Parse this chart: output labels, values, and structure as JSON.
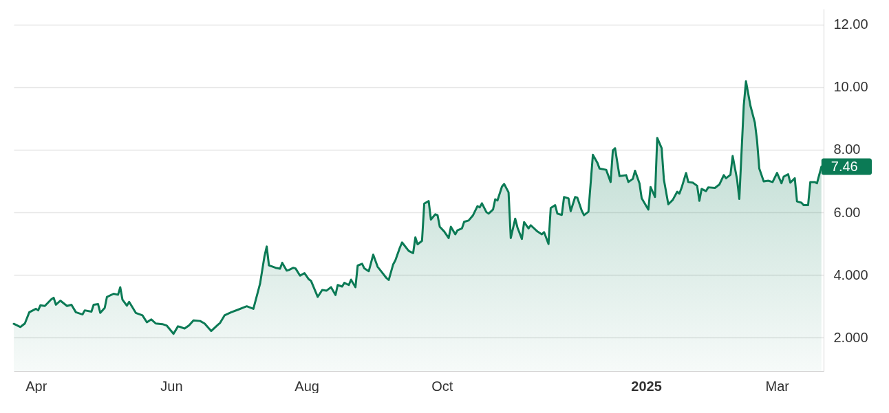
{
  "chart_data": {
    "type": "area",
    "x": [
      "2024-03-22",
      "2024-03-25",
      "2024-03-27",
      "2024-03-29",
      "2024-04-01",
      "2024-04-02",
      "2024-04-03",
      "2024-04-05",
      "2024-04-08",
      "2024-04-09",
      "2024-04-10",
      "2024-04-12",
      "2024-04-15",
      "2024-04-17",
      "2024-04-19",
      "2024-04-22",
      "2024-04-23",
      "2024-04-26",
      "2024-04-27",
      "2024-04-29",
      "2024-04-30",
      "2024-05-02",
      "2024-05-03",
      "2024-05-06",
      "2024-05-08",
      "2024-05-09",
      "2024-05-10",
      "2024-05-12",
      "2024-05-13",
      "2024-05-16",
      "2024-05-19",
      "2024-05-21",
      "2024-05-23",
      "2024-05-25",
      "2024-05-28",
      "2024-05-30",
      "2024-06-02",
      "2024-06-04",
      "2024-06-05",
      "2024-06-07",
      "2024-06-09",
      "2024-06-11",
      "2024-06-14",
      "2024-06-16",
      "2024-06-19",
      "2024-06-22",
      "2024-06-23",
      "2024-06-25",
      "2024-06-28",
      "2024-07-01",
      "2024-07-05",
      "2024-07-08",
      "2024-07-11",
      "2024-07-13",
      "2024-07-14",
      "2024-07-15",
      "2024-07-18",
      "2024-07-20",
      "2024-07-21",
      "2024-07-23",
      "2024-07-24",
      "2024-07-26",
      "2024-07-27",
      "2024-07-29",
      "2024-07-31",
      "2024-08-02",
      "2024-08-03",
      "2024-08-06",
      "2024-08-08",
      "2024-08-10",
      "2024-08-12",
      "2024-08-14",
      "2024-08-15",
      "2024-08-17",
      "2024-08-18",
      "2024-08-20",
      "2024-08-21",
      "2024-08-23",
      "2024-08-24",
      "2024-08-26",
      "2024-08-27",
      "2024-08-29",
      "2024-08-31",
      "2024-09-02",
      "2024-09-03",
      "2024-09-06",
      "2024-09-07",
      "2024-09-09",
      "2024-09-10",
      "2024-09-12",
      "2024-09-13",
      "2024-09-16",
      "2024-09-18",
      "2024-09-19",
      "2024-09-20",
      "2024-09-22",
      "2024-09-23",
      "2024-09-25",
      "2024-09-26",
      "2024-09-28",
      "2024-09-29",
      "2024-09-30",
      "2024-10-02",
      "2024-10-04",
      "2024-10-05",
      "2024-10-07",
      "2024-10-08",
      "2024-10-10",
      "2024-10-11",
      "2024-10-13",
      "2024-10-15",
      "2024-10-17",
      "2024-10-18",
      "2024-10-19",
      "2024-10-21",
      "2024-10-22",
      "2024-10-24",
      "2024-10-25",
      "2024-10-26",
      "2024-10-28",
      "2024-10-29",
      "2024-10-31",
      "2024-11-01",
      "2024-11-03",
      "2024-11-04",
      "2024-11-06",
      "2024-11-07",
      "2024-11-09",
      "2024-11-10",
      "2024-11-13",
      "2024-11-15",
      "2024-11-16",
      "2024-11-18",
      "2024-11-19",
      "2024-11-21",
      "2024-11-22",
      "2024-11-24",
      "2024-11-25",
      "2024-11-27",
      "2024-11-28",
      "2024-11-30",
      "2024-12-01",
      "2024-12-03",
      "2024-12-04",
      "2024-12-06",
      "2024-12-08",
      "2024-12-10",
      "2024-12-11",
      "2024-12-14",
      "2024-12-16",
      "2024-12-17",
      "2024-12-18",
      "2024-12-20",
      "2024-12-23",
      "2024-12-24",
      "2024-12-26",
      "2024-12-27",
      "2024-12-29",
      "2024-12-30",
      "2025-01-02",
      "2025-01-03",
      "2025-01-05",
      "2025-01-06",
      "2025-01-08",
      "2025-01-09",
      "2025-01-11",
      "2025-01-13",
      "2025-01-15",
      "2025-01-16",
      "2025-01-17",
      "2025-01-19",
      "2025-01-20",
      "2025-01-22",
      "2025-01-24",
      "2025-01-25",
      "2025-01-26",
      "2025-01-28",
      "2025-01-29",
      "2025-02-01",
      "2025-02-03",
      "2025-02-05",
      "2025-02-06",
      "2025-02-08",
      "2025-02-09",
      "2025-02-11",
      "2025-02-12",
      "2025-02-14",
      "2025-02-15",
      "2025-02-17",
      "2025-02-19",
      "2025-02-20",
      "2025-02-21",
      "2025-02-23",
      "2025-02-25",
      "2025-02-27",
      "2025-03-01",
      "2025-03-03",
      "2025-03-04",
      "2025-03-06",
      "2025-03-07",
      "2025-03-09",
      "2025-03-10",
      "2025-03-12",
      "2025-03-13",
      "2025-03-15",
      "2025-03-16",
      "2025-03-18",
      "2025-03-19",
      "2025-03-21"
    ],
    "series": [
      {
        "color": "#0b7a55",
        "values": [
          2.44,
          2.34,
          2.45,
          2.81,
          2.92,
          2.87,
          3.03,
          3.01,
          3.23,
          3.27,
          3.05,
          3.18,
          3.01,
          3.05,
          2.81,
          2.74,
          2.87,
          2.83,
          3.05,
          3.07,
          2.79,
          2.95,
          3.3,
          3.4,
          3.37,
          3.61,
          3.21,
          3.02,
          3.14,
          2.79,
          2.71,
          2.49,
          2.58,
          2.45,
          2.43,
          2.38,
          2.12,
          2.36,
          2.34,
          2.29,
          2.39,
          2.55,
          2.53,
          2.45,
          2.21,
          2.41,
          2.47,
          2.71,
          2.81,
          2.89,
          3.0,
          2.92,
          3.72,
          4.6,
          4.91,
          4.31,
          4.23,
          4.2,
          4.39,
          4.14,
          4.16,
          4.23,
          4.21,
          3.98,
          4.06,
          3.86,
          3.81,
          3.3,
          3.52,
          3.5,
          3.61,
          3.36,
          3.68,
          3.63,
          3.75,
          3.68,
          3.85,
          3.61,
          4.3,
          4.36,
          4.21,
          4.12,
          4.65,
          4.26,
          4.17,
          3.9,
          3.84,
          4.34,
          4.47,
          4.87,
          5.04,
          4.77,
          4.7,
          5.2,
          4.98,
          5.09,
          6.28,
          6.36,
          5.77,
          5.94,
          5.91,
          5.54,
          5.39,
          5.18,
          5.54,
          5.3,
          5.43,
          5.49,
          5.7,
          5.74,
          5.91,
          6.2,
          6.16,
          6.29,
          6.01,
          5.96,
          6.09,
          6.42,
          6.38,
          6.82,
          6.91,
          6.64,
          5.18,
          5.8,
          5.52,
          5.15,
          5.69,
          5.49,
          5.59,
          5.39,
          5.3,
          5.37,
          4.99,
          6.14,
          6.23,
          5.96,
          5.92,
          6.49,
          6.45,
          6.04,
          6.49,
          6.47,
          6.05,
          5.91,
          6.02,
          7.84,
          7.59,
          7.4,
          7.36,
          6.97,
          7.98,
          8.05,
          7.16,
          7.19,
          6.97,
          7.07,
          7.33,
          6.93,
          6.45,
          6.09,
          6.81,
          6.49,
          8.38,
          8.05,
          7.05,
          6.26,
          6.4,
          6.66,
          6.6,
          6.79,
          7.26,
          6.97,
          6.95,
          6.85,
          6.37,
          6.75,
          6.68,
          6.8,
          6.78,
          6.89,
          7.19,
          7.09,
          7.2,
          7.8,
          7.05,
          6.43,
          9.41,
          10.19,
          9.41,
          8.87,
          8.29,
          7.4,
          6.99,
          7.01,
          6.97,
          7.26,
          6.93,
          7.14,
          7.22,
          6.95,
          7.09,
          6.35,
          6.31,
          6.23,
          6.23,
          6.97,
          6.97,
          6.93,
          7.46
        ]
      }
    ],
    "xlim": [
      "2024-03-22",
      "2025-03-22"
    ],
    "xticks": [
      {
        "value": "2024-04-01",
        "label": "Apr"
      },
      {
        "value": "2024-06-01",
        "label": "Jun"
      },
      {
        "value": "2024-08-01",
        "label": "Aug"
      },
      {
        "value": "2024-10-01",
        "label": "Oct"
      },
      {
        "value": "2025-01-01",
        "label": "2025"
      },
      {
        "value": "2025-03-01",
        "label": "Mar"
      }
    ],
    "ylim": [
      0.93,
      12.5
    ],
    "yticks": [
      {
        "value": 2,
        "label": "2.000"
      },
      {
        "value": 4,
        "label": "4.000"
      },
      {
        "value": 6,
        "label": "6.00"
      },
      {
        "value": 8,
        "label": "8.00"
      },
      {
        "value": 10,
        "label": "10.00"
      },
      {
        "value": 12,
        "label": "12.00"
      }
    ],
    "grid": "y",
    "annotations": [
      {
        "text": "7.46",
        "x": "2025-03-21",
        "y": 7.46
      }
    ]
  }
}
